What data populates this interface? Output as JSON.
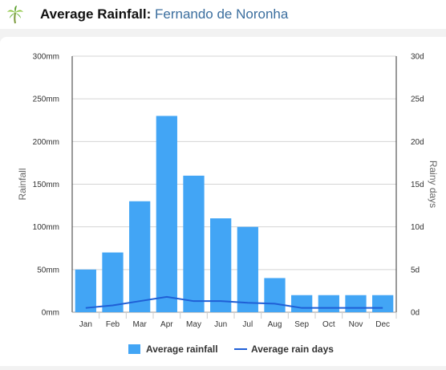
{
  "header": {
    "title_prefix": "Average Rainfall:",
    "title_place": "Fernando de Noronha",
    "logo_icon": "palm-tree-icon"
  },
  "chart_data": {
    "type": "bar",
    "categories": [
      "Jan",
      "Feb",
      "Mar",
      "Apr",
      "May",
      "Jun",
      "Jul",
      "Aug",
      "Sep",
      "Oct",
      "Nov",
      "Dec"
    ],
    "series": [
      {
        "name": "Average rainfall",
        "type": "bar",
        "axis": "left",
        "color": "#42a5f5",
        "values": [
          50,
          70,
          130,
          230,
          160,
          110,
          100,
          40,
          20,
          20,
          20,
          20
        ]
      },
      {
        "name": "Average rain days",
        "type": "line",
        "axis": "right",
        "color": "#1f5fd6",
        "values": [
          0.5,
          0.8,
          1.3,
          1.8,
          1.3,
          1.3,
          1.1,
          1.0,
          0.5,
          0.5,
          0.5,
          0.5
        ]
      }
    ],
    "ylabel": "Rainfall",
    "y2label": "Rainy days",
    "ylim": [
      0,
      300
    ],
    "y2lim": [
      0,
      30
    ],
    "yticks": [
      "0mm",
      "50mm",
      "100mm",
      "150mm",
      "200mm",
      "250mm",
      "300mm"
    ],
    "y2ticks": [
      "0d",
      "5d",
      "10d",
      "15d",
      "20d",
      "25d",
      "30d"
    ],
    "grid": true,
    "legend": "bottom"
  }
}
